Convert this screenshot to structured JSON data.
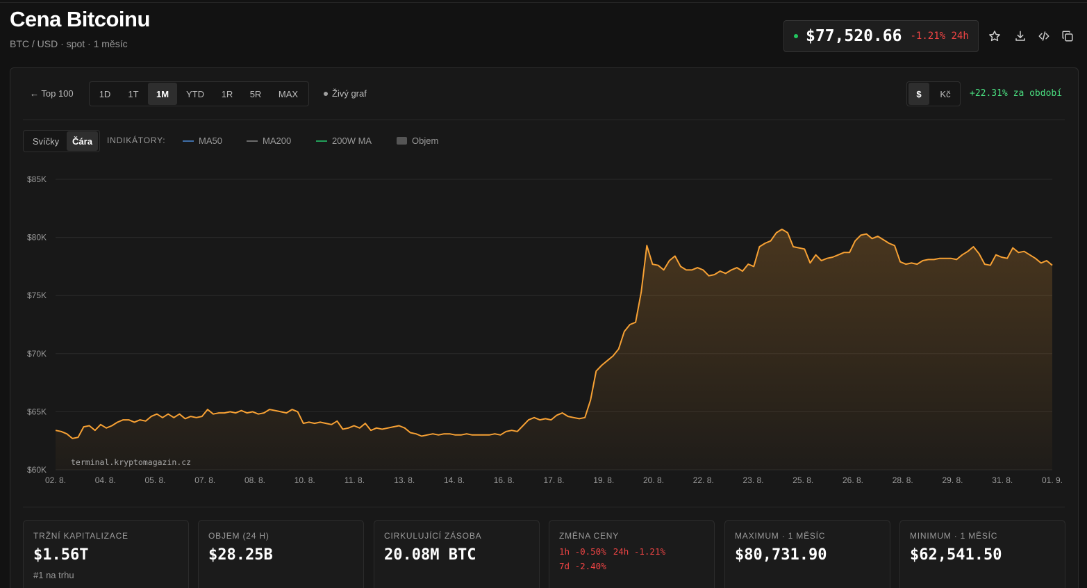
{
  "header": {
    "title": "Cena Bitcoinu",
    "subtitle": "BTC / USD · spot · 1 měsíc",
    "price": "$77,520.66",
    "change_24h": "-1.21% 24h",
    "live_status_color": "#22c55e",
    "icons": [
      "star-icon",
      "download-icon",
      "code-icon",
      "copy-icon"
    ]
  },
  "controls": {
    "back_label": "← Top 100",
    "ranges": [
      "1D",
      "1T",
      "1M",
      "YTD",
      "1R",
      "5R",
      "MAX"
    ],
    "active_range": "1M",
    "live_label": "Živý graf",
    "currencies": [
      "$",
      "Kč"
    ],
    "active_currency": "$",
    "period_change": "+22.31% za období",
    "chart_types": [
      "Svíčky",
      "Čára"
    ],
    "active_chart_type": "Čára",
    "indicators_label": "INDIKÁTORY:",
    "indicators": [
      {
        "label": "MA50",
        "color": "#3f6fa8"
      },
      {
        "label": "MA200",
        "color": "#6b6b6b"
      },
      {
        "label": "200W MA",
        "color": "#22a05a"
      },
      {
        "label": "Objem",
        "color": "#555555"
      }
    ]
  },
  "chart_data": {
    "type": "area",
    "line_color": "#f7a134",
    "watermark": "terminal.kryptomagazin.cz",
    "ylim": [
      60000,
      85000
    ],
    "y_ticks": [
      60000,
      65000,
      70000,
      75000,
      80000,
      85000
    ],
    "y_tick_labels": [
      "$60K",
      "$65K",
      "$70K",
      "$75K",
      "$80K",
      "$85K"
    ],
    "x_tick_labels": [
      "02. 8.",
      "04. 8.",
      "05. 8.",
      "07. 8.",
      "08. 8.",
      "10. 8.",
      "11. 8.",
      "13. 8.",
      "14. 8.",
      "16. 8.",
      "17. 8.",
      "19. 8.",
      "20. 8.",
      "22. 8.",
      "23. 8.",
      "25. 8.",
      "26. 8.",
      "28. 8.",
      "29. 8.",
      "31. 8.",
      "01. 9."
    ],
    "grid": true,
    "series": [
      {
        "values": [
          63400,
          63300,
          63100,
          62700,
          62800,
          63700,
          63800,
          63400,
          63900,
          63600,
          63800,
          64100,
          64300,
          64300,
          64100,
          64300,
          64200,
          64600,
          64800,
          64500,
          64800,
          64500,
          64800,
          64400,
          64600,
          64500,
          64600,
          65200,
          64800,
          64900,
          64900,
          65000,
          64900,
          65100,
          64900,
          65000,
          64800,
          64900,
          65200,
          65100,
          65000,
          64900,
          65200,
          65000,
          64000,
          64100,
          64000,
          64100,
          64000,
          63900,
          64200,
          63500,
          63600,
          63800,
          63600,
          64000,
          63400,
          63600,
          63500,
          63600,
          63700,
          63800,
          63600,
          63200,
          63100,
          62900,
          63000,
          63100,
          63000,
          63100,
          63100,
          63000,
          63000,
          63100,
          63000,
          63000,
          63000,
          63000,
          63100,
          63000,
          63300,
          63400,
          63300,
          63800,
          64300,
          64500,
          64300,
          64400,
          64300,
          64700,
          64900,
          64600,
          64500,
          64400,
          64500,
          66000,
          68500,
          69000,
          69400,
          69800,
          70400,
          71900,
          72500,
          72700,
          75300,
          79300,
          77700,
          77600,
          77200,
          78000,
          78400,
          77500,
          77200,
          77200,
          77400,
          77200,
          76700,
          76800,
          77100,
          76900,
          77200,
          77400,
          77100,
          77700,
          77500,
          79200,
          79500,
          79700,
          80400,
          80700,
          80400,
          79200,
          79100,
          79000,
          77800,
          78500,
          78000,
          78200,
          78300,
          78500,
          78700,
          78700,
          79700,
          80200,
          80300,
          79900,
          80100,
          79800,
          79500,
          79300,
          77900,
          77700,
          77800,
          77700,
          78000,
          78100,
          78100,
          78200,
          78200,
          78200,
          78100,
          78500,
          78800,
          79200,
          78600,
          77700,
          77600,
          78500,
          78300,
          78200,
          79100,
          78700,
          78800,
          78500,
          78200,
          77800,
          78000,
          77600
        ]
      }
    ]
  },
  "stats": [
    {
      "label": "TRŽNÍ KAPITALIZACE",
      "value": "$1.56T",
      "sub": "#1 na trhu"
    },
    {
      "label": "OBJEM (24 H)",
      "value": "$28.25B"
    },
    {
      "label": "CIRKULUJÍCÍ ZÁSOBA",
      "value": "20.08M BTC"
    },
    {
      "label": "ZMĚNA CENY",
      "changes": [
        "1h -0.50%",
        "24h -1.21%",
        "7d -2.40%"
      ]
    },
    {
      "label": "MAXIMUM · 1 MĚSÍC",
      "value": "$80,731.90"
    },
    {
      "label": "MINIMUM · 1 MĚSÍC",
      "value": "$62,541.50"
    }
  ]
}
